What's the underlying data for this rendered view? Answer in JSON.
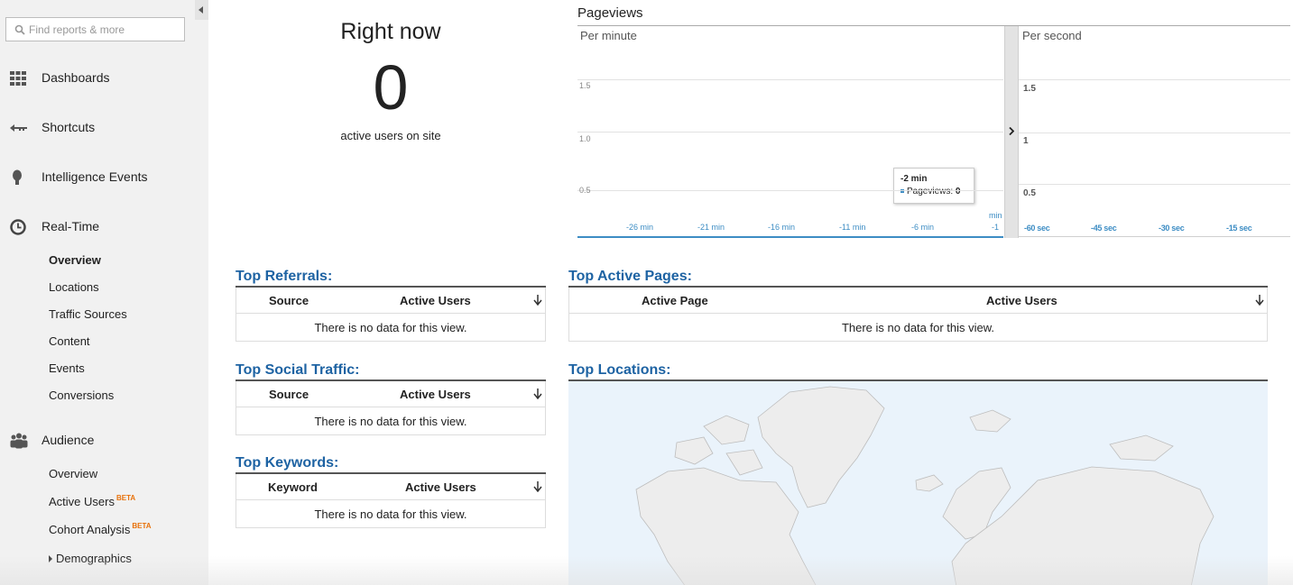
{
  "search": {
    "placeholder": "Find reports & more"
  },
  "nav": {
    "dashboards": "Dashboards",
    "shortcuts": "Shortcuts",
    "intelligence": "Intelligence Events",
    "realtime": "Real-Time",
    "realtime_items": [
      "Overview",
      "Locations",
      "Traffic Sources",
      "Content",
      "Events",
      "Conversions"
    ],
    "audience": "Audience",
    "audience_items": {
      "overview": "Overview",
      "active_users": "Active Users",
      "cohort": "Cohort Analysis",
      "beta": "BETA",
      "demographics": "Demographics"
    }
  },
  "right_now": {
    "title": "Right now",
    "count": "0",
    "subtitle": "active users on site"
  },
  "pageviews": {
    "title": "Pageviews",
    "per_minute": "Per minute",
    "per_second": "Per second",
    "tooltip": {
      "time": "-2 min",
      "label": "Pageviews:",
      "value": "0"
    }
  },
  "chart_data": [
    {
      "type": "bar",
      "title": "Per minute",
      "y_ticks": [
        "0.5",
        "1.0",
        "1.5"
      ],
      "x_ticks": [
        "-26 min",
        "-21 min",
        "-16 min",
        "-11 min",
        "-6 min",
        "-1",
        "min"
      ],
      "ylim": [
        0,
        2
      ],
      "series": [
        {
          "name": "Pageviews",
          "values": [
            0
          ]
        }
      ]
    },
    {
      "type": "bar",
      "title": "Per second",
      "y_ticks": [
        "0.5",
        "1",
        "1.5"
      ],
      "x_ticks": [
        "-60 sec",
        "-45 sec",
        "-30 sec",
        "-15 sec"
      ],
      "ylim": [
        0,
        2
      ],
      "series": [
        {
          "name": "Pageviews",
          "values": [
            0
          ]
        }
      ]
    }
  ],
  "tables": {
    "referrals": {
      "title": "Top Referrals:",
      "col1": "Source",
      "col2": "Active Users",
      "empty": "There is no data for this view."
    },
    "social": {
      "title": "Top Social Traffic:",
      "col1": "Source",
      "col2": "Active Users",
      "empty": "There is no data for this view."
    },
    "keywords": {
      "title": "Top Keywords:",
      "col1": "Keyword",
      "col2": "Active Users",
      "empty": "There is no data for this view."
    },
    "pages": {
      "title": "Top Active Pages:",
      "col1": "Active Page",
      "col2": "Active Users",
      "empty": "There is no data for this view."
    }
  },
  "locations": {
    "title": "Top Locations:"
  }
}
